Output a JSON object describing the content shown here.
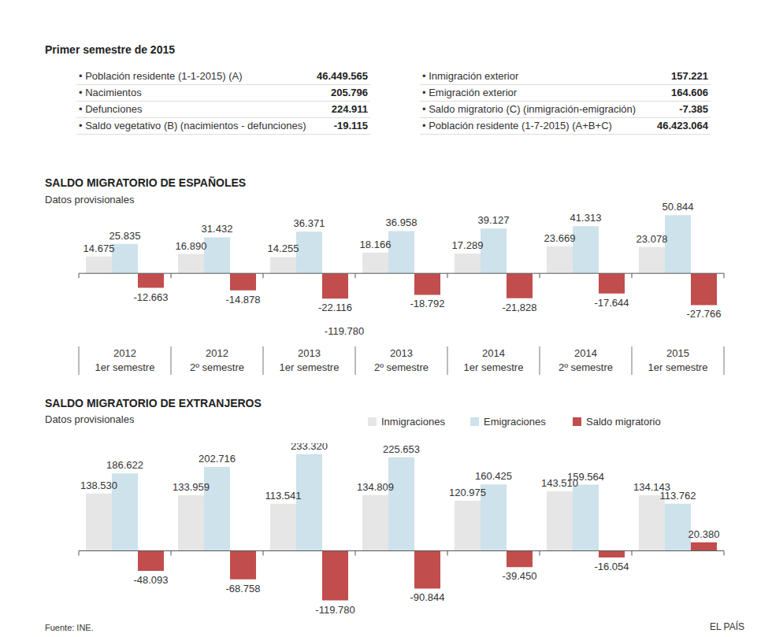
{
  "header": {
    "title": "Primer semestre de 2015",
    "tables": [
      {
        "rows": [
          [
            "• Población residente (1-1-2015) (A)",
            "46.449.565"
          ],
          [
            "• Nacimientos",
            "205.796"
          ],
          [
            "• Defunciones",
            "224.911"
          ],
          [
            "• Saldo vegetativo (B) (nacimientos - defunciones)",
            "-19.115"
          ]
        ]
      },
      {
        "rows": [
          [
            "• Inmigración exterior",
            "157.221"
          ],
          [
            "• Emigración exterior",
            "164.606"
          ],
          [
            "• Saldo migratorio (C) (inmigración-emigración)",
            "-7.385"
          ],
          [
            "• Población residente (1-7-2015) (A+B+C)",
            "46.423.064"
          ]
        ]
      }
    ]
  },
  "chart_data": [
    {
      "type": "bar",
      "title": "SALDO MIGRATORIO DE ESPAÑOLES",
      "subtitle": "Datos provisionales",
      "categories": [
        "2012 1er semestre",
        "2012 2º semestre",
        "2013 1er semestre",
        "2013 2º semestre",
        "2014 1er semestre",
        "2014 2º semestre",
        "2015 1er semestre"
      ],
      "series": [
        {
          "name": "Inmigraciones",
          "color": "#e6e6e6",
          "values": [
            14675,
            16890,
            14255,
            18166,
            17289,
            23669,
            23078
          ],
          "value_labels": [
            "14.675",
            "16.890",
            "14.255",
            "18.166",
            "17.289",
            "23.669",
            "23.078"
          ]
        },
        {
          "name": "Emigraciones",
          "color": "#cde2eb",
          "values": [
            25835,
            31432,
            36371,
            36958,
            39127,
            41313,
            50844
          ],
          "value_labels": [
            "25.835",
            "31.432",
            "36.371",
            "36.958",
            "39.127",
            "41.313",
            "50.844"
          ]
        },
        {
          "name": "Saldo migratorio",
          "color": "#c14d4d",
          "values": [
            -12663,
            -14878,
            -22116,
            -18792,
            -21828,
            -17644,
            -27766
          ],
          "value_labels": [
            "-12.663",
            "-14.878",
            "-22.116",
            "-18.792",
            "-21,828",
            "-17.644",
            "-27.766"
          ]
        }
      ],
      "ylim": [
        -35000,
        60000
      ],
      "grid": false,
      "data_labels": true,
      "tick_labels": "x",
      "annotations": [
        "-119.780"
      ]
    },
    {
      "type": "bar",
      "title": "SALDO MIGRATORIO DE EXTRANJEROS",
      "subtitle": "Datos provisionales",
      "categories": [
        null,
        null,
        null,
        null,
        null,
        null,
        null
      ],
      "series": [
        {
          "name": "Inmigraciones",
          "color": "#e6e6e6",
          "values": [
            138530,
            133959,
            113541,
            134809,
            120975,
            143510,
            134143
          ],
          "value_labels": [
            "138.530",
            "133.959",
            "113.541",
            "134.809",
            "120.975",
            "143.510",
            "134.143"
          ]
        },
        {
          "name": "Emigraciones",
          "color": "#cde2eb",
          "values": [
            186622,
            202716,
            233320,
            225653,
            160425,
            159564,
            113762
          ],
          "value_labels": [
            "186.622",
            "202.716",
            "233.320",
            "225.653",
            "160.425",
            "159.564",
            "113.762"
          ]
        },
        {
          "name": "Saldo migratorio",
          "color": "#c14d4d",
          "values": [
            -48093,
            -68758,
            -119780,
            -90844,
            -39450,
            -16054,
            20380
          ],
          "value_labels": [
            "-48.093",
            "-68.758",
            "-119.780",
            "-90.844",
            "-39.450",
            "-16.054",
            "20.380"
          ]
        }
      ],
      "ylim": [
        -130000,
        250000
      ],
      "grid": false,
      "data_labels": true,
      "tick_labels": false,
      "legend": "top-right"
    }
  ],
  "footer": {
    "source": "Fuente: INE.",
    "credit": "EL PAÍS"
  }
}
